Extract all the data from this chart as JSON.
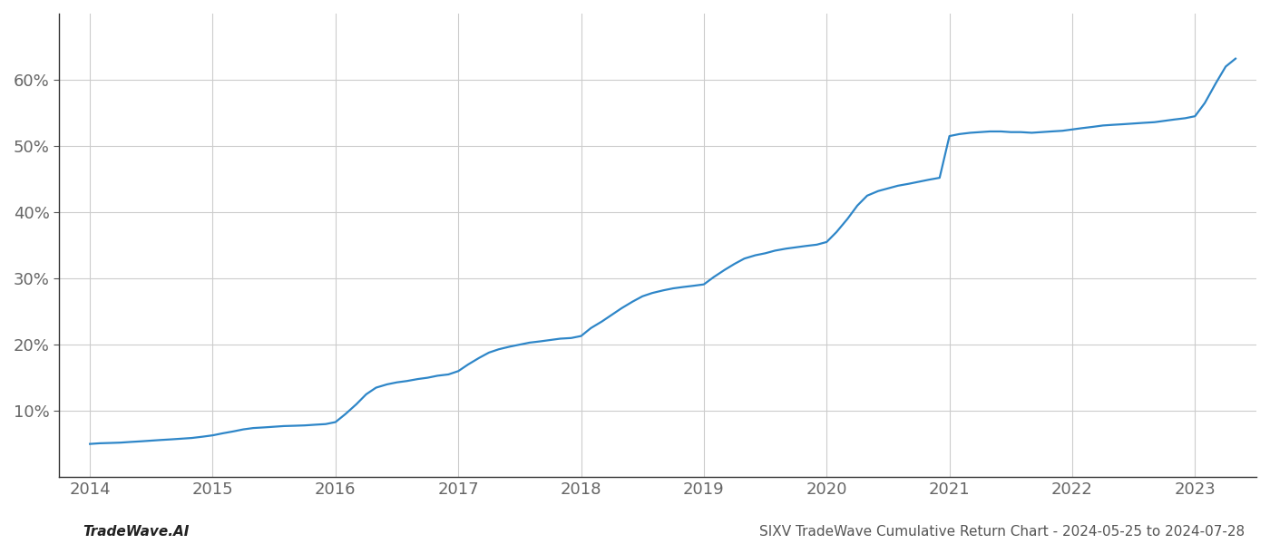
{
  "footer_left": "TradeWave.AI",
  "footer_right": "SIXV TradeWave Cumulative Return Chart - 2024-05-25 to 2024-07-28",
  "line_color": "#2e86c8",
  "line_width": 1.6,
  "background_color": "#ffffff",
  "grid_color": "#cccccc",
  "x_values": [
    2014.0,
    2014.08,
    2014.17,
    2014.25,
    2014.33,
    2014.42,
    2014.5,
    2014.58,
    2014.67,
    2014.75,
    2014.83,
    2014.92,
    2015.0,
    2015.08,
    2015.17,
    2015.25,
    2015.33,
    2015.42,
    2015.5,
    2015.58,
    2015.67,
    2015.75,
    2015.83,
    2015.92,
    2016.0,
    2016.08,
    2016.17,
    2016.25,
    2016.33,
    2016.42,
    2016.5,
    2016.58,
    2016.67,
    2016.75,
    2016.83,
    2016.92,
    2017.0,
    2017.08,
    2017.17,
    2017.25,
    2017.33,
    2017.42,
    2017.5,
    2017.58,
    2017.67,
    2017.75,
    2017.83,
    2017.92,
    2018.0,
    2018.08,
    2018.17,
    2018.25,
    2018.33,
    2018.42,
    2018.5,
    2018.58,
    2018.67,
    2018.75,
    2018.83,
    2018.92,
    2019.0,
    2019.08,
    2019.17,
    2019.25,
    2019.33,
    2019.42,
    2019.5,
    2019.58,
    2019.67,
    2019.75,
    2019.83,
    2019.92,
    2020.0,
    2020.08,
    2020.17,
    2020.25,
    2020.33,
    2020.42,
    2020.5,
    2020.58,
    2020.67,
    2020.75,
    2020.83,
    2020.92,
    2021.0,
    2021.08,
    2021.17,
    2021.25,
    2021.33,
    2021.42,
    2021.5,
    2021.58,
    2021.67,
    2021.75,
    2021.83,
    2021.92,
    2022.0,
    2022.08,
    2022.17,
    2022.25,
    2022.33,
    2022.42,
    2022.5,
    2022.58,
    2022.67,
    2022.75,
    2022.83,
    2022.92,
    2023.0,
    2023.08,
    2023.17,
    2023.25,
    2023.33
  ],
  "y_values": [
    5.0,
    5.1,
    5.15,
    5.2,
    5.3,
    5.4,
    5.5,
    5.6,
    5.7,
    5.8,
    5.9,
    6.1,
    6.3,
    6.6,
    6.9,
    7.2,
    7.4,
    7.5,
    7.6,
    7.7,
    7.75,
    7.8,
    7.9,
    8.0,
    8.3,
    9.5,
    11.0,
    12.5,
    13.5,
    14.0,
    14.3,
    14.5,
    14.8,
    15.0,
    15.3,
    15.5,
    16.0,
    17.0,
    18.0,
    18.8,
    19.3,
    19.7,
    20.0,
    20.3,
    20.5,
    20.7,
    20.9,
    21.0,
    21.3,
    22.5,
    23.5,
    24.5,
    25.5,
    26.5,
    27.3,
    27.8,
    28.2,
    28.5,
    28.7,
    28.9,
    29.1,
    30.2,
    31.3,
    32.2,
    33.0,
    33.5,
    33.8,
    34.2,
    34.5,
    34.7,
    34.9,
    35.1,
    35.5,
    37.0,
    39.0,
    41.0,
    42.5,
    43.2,
    43.6,
    44.0,
    44.3,
    44.6,
    44.9,
    45.2,
    51.5,
    51.8,
    52.0,
    52.1,
    52.2,
    52.2,
    52.1,
    52.1,
    52.0,
    52.1,
    52.2,
    52.3,
    52.5,
    52.7,
    52.9,
    53.1,
    53.2,
    53.3,
    53.4,
    53.5,
    53.6,
    53.8,
    54.0,
    54.2,
    54.5,
    56.5,
    59.5,
    62.0,
    63.2
  ],
  "xlim": [
    2013.75,
    2023.5
  ],
  "ylim": [
    0,
    70
  ],
  "yticks": [
    10,
    20,
    30,
    40,
    50,
    60
  ],
  "xticks": [
    2014,
    2015,
    2016,
    2017,
    2018,
    2019,
    2020,
    2021,
    2022,
    2023
  ],
  "tick_label_fontsize": 13,
  "footer_fontsize": 11,
  "axis_color": "#888888",
  "tick_color": "#666666"
}
